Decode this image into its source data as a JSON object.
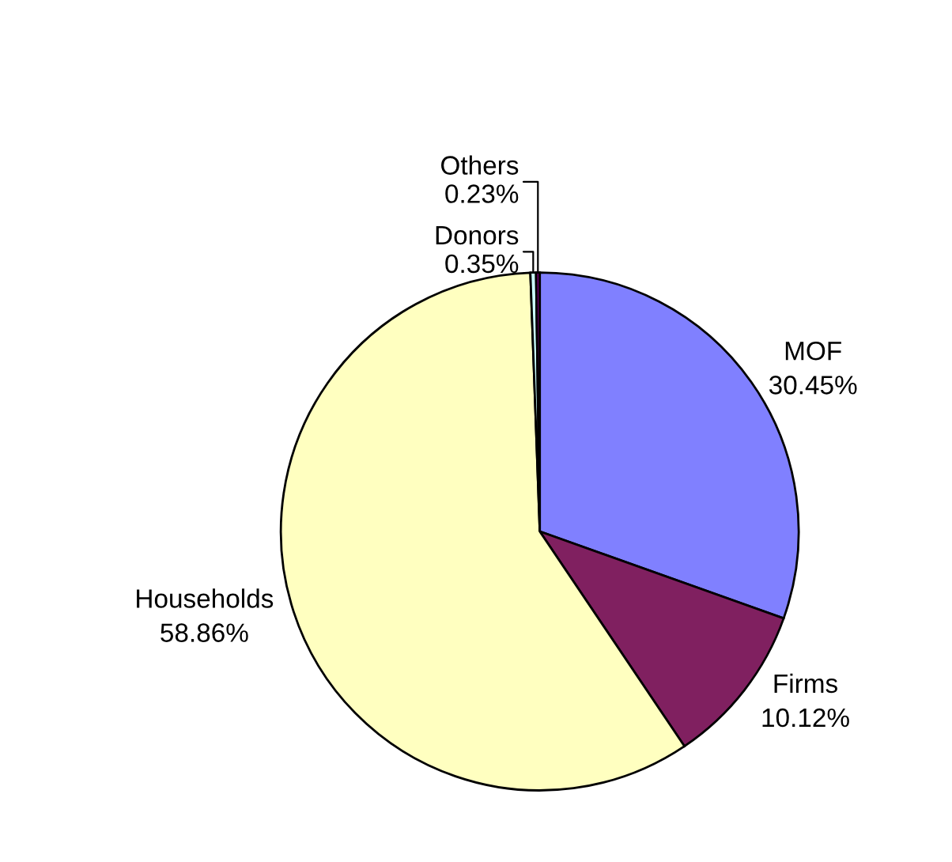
{
  "chart_data": {
    "type": "pie",
    "categories": [
      "MOF",
      "Firms",
      "Households",
      "Donors",
      "Others"
    ],
    "values": [
      30.45,
      10.12,
      58.86,
      0.35,
      0.23
    ],
    "value_labels": [
      "30.45%",
      "10.12%",
      "58.86%",
      "0.35%",
      "0.23%"
    ],
    "colors": [
      "#8080ff",
      "#802060",
      "#ffffc0",
      "#ccffff",
      "#660066"
    ]
  }
}
